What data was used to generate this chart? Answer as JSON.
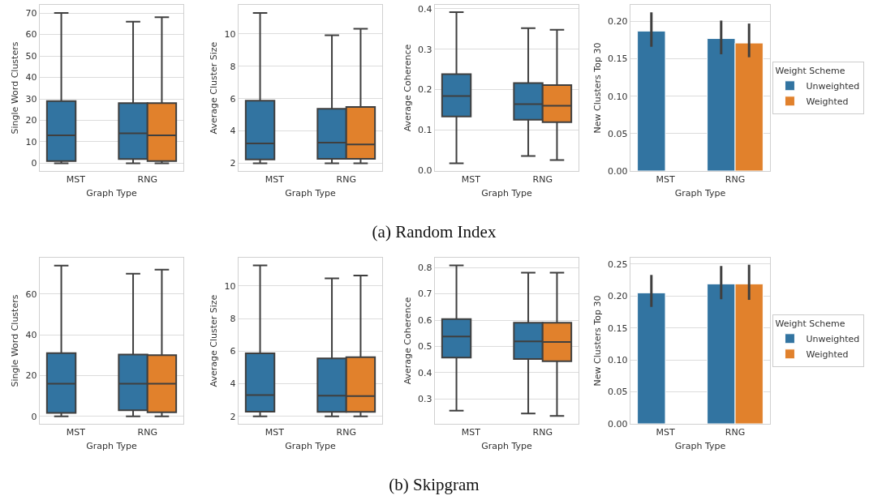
{
  "chart_data": [
    {
      "type": "box",
      "xlabel": "Graph Type",
      "ylabel": "Single Word Clusters",
      "categories": [
        "MST",
        "RNG"
      ],
      "ylim": [
        -3.6,
        73.8
      ],
      "yticks": [
        0,
        10,
        20,
        30,
        40,
        50,
        60,
        70
      ],
      "grid": "y",
      "annotations": [
        "(a) Random Index"
      ],
      "series": [
        {
          "color": "#3274a1",
          "boxes": [
            {
              "low": 0,
              "q1": 1,
              "median": 13,
              "q3": 29,
              "high": 70
            },
            {
              "low": 0,
              "q1": 2,
              "median": 14,
              "q3": 28,
              "high": 66
            }
          ]
        },
        {
          "color": "#e1812c",
          "boxes": [
            null,
            {
              "low": 0,
              "q1": 1,
              "median": 13,
              "q3": 28,
              "high": 68
            }
          ]
        }
      ]
    },
    {
      "type": "box",
      "xlabel": "Graph Type",
      "ylabel": "Average Cluster Size",
      "categories": [
        "MST",
        "RNG"
      ],
      "ylim": [
        1.52,
        11.8
      ],
      "yticks": [
        2,
        4,
        6,
        8,
        10
      ],
      "grid": "y",
      "series": [
        {
          "color": "#3274a1",
          "boxes": [
            {
              "low": 2,
              "q1": 2.23,
              "median": 3.22,
              "q3": 5.87,
              "high": 11.3
            },
            {
              "low": 2,
              "q1": 2.27,
              "median": 3.27,
              "q3": 5.37,
              "high": 9.92
            }
          ]
        },
        {
          "color": "#e1812c",
          "boxes": [
            null,
            {
              "low": 2,
              "q1": 2.27,
              "median": 3.16,
              "q3": 5.48,
              "high": 10.32
            }
          ]
        }
      ]
    },
    {
      "type": "box",
      "xlabel": "Graph Type",
      "ylabel": "Average Coherence",
      "categories": [
        "MST",
        "RNG"
      ],
      "ylim": [
        -0.002,
        0.41
      ],
      "yticks": [
        {
          "value": 0,
          "label": "0.0"
        },
        0.1,
        0.2,
        0.3,
        0.4
      ],
      "grid": "y",
      "series": [
        {
          "color": "#3274a1",
          "boxes": [
            {
              "low": 0.017,
              "q1": 0.133,
              "median": 0.184,
              "q3": 0.238,
              "high": 0.392
            },
            {
              "low": 0.035,
              "q1": 0.125,
              "median": 0.164,
              "q3": 0.216,
              "high": 0.352
            }
          ]
        },
        {
          "color": "#e1812c",
          "boxes": [
            null,
            {
              "low": 0.025,
              "q1": 0.119,
              "median": 0.16,
              "q3": 0.211,
              "high": 0.348
            }
          ]
        }
      ]
    },
    {
      "type": "bar",
      "xlabel": "Graph Type",
      "ylabel": "New Clusters Top 30",
      "categories": [
        "MST",
        "RNG"
      ],
      "ylim": [
        0,
        0.222
      ],
      "yticks": [
        {
          "value": 0,
          "label": "0.00"
        },
        0.05,
        {
          "value": 0.1,
          "label": "0.10"
        },
        0.15,
        {
          "value": 0.2,
          "label": "0.20"
        }
      ],
      "grid": "y",
      "legend": "right",
      "legend_title": "Weight Scheme",
      "series": [
        {
          "name": "Unweighted",
          "color": "#3274a1",
          "values": [
            0.187,
            0.177
          ],
          "errors": [
            [
              0.166,
              0.212
            ],
            [
              0.156,
              0.201
            ]
          ]
        },
        {
          "name": "Weighted",
          "color": "#e1812c",
          "values": [
            null,
            0.171
          ],
          "errors": [
            null,
            [
              0.152,
              0.197
            ]
          ]
        }
      ]
    },
    {
      "type": "box",
      "xlabel": "Graph Type",
      "ylabel": "Single Word Clusters",
      "categories": [
        "MST",
        "RNG"
      ],
      "ylim": [
        -3.7,
        77.9
      ],
      "yticks": [
        0,
        20,
        40,
        60
      ],
      "grid": "y",
      "annotations": [
        "(b) Skipgram"
      ],
      "series": [
        {
          "color": "#3274a1",
          "boxes": [
            {
              "low": 0,
              "q1": 1.7,
              "median": 16,
              "q3": 31,
              "high": 74
            },
            {
              "low": 0,
              "q1": 3,
              "median": 16,
              "q3": 30.3,
              "high": 70
            }
          ]
        },
        {
          "color": "#e1812c",
          "boxes": [
            null,
            {
              "low": 0,
              "q1": 2,
              "median": 16,
              "q3": 30,
              "high": 72
            }
          ]
        }
      ]
    },
    {
      "type": "box",
      "xlabel": "Graph Type",
      "ylabel": "Average Cluster Size",
      "categories": [
        "MST",
        "RNG"
      ],
      "ylim": [
        1.54,
        11.73
      ],
      "yticks": [
        2,
        4,
        6,
        8,
        10
      ],
      "grid": "y",
      "series": [
        {
          "color": "#3274a1",
          "boxes": [
            {
              "low": 2,
              "q1": 2.28,
              "median": 3.31,
              "q3": 5.87,
              "high": 11.26
            },
            {
              "low": 2,
              "q1": 2.27,
              "median": 3.27,
              "q3": 5.56,
              "high": 10.46
            }
          ]
        },
        {
          "color": "#e1812c",
          "boxes": [
            null,
            {
              "low": 2,
              "q1": 2.27,
              "median": 3.24,
              "q3": 5.63,
              "high": 10.64
            }
          ]
        }
      ]
    },
    {
      "type": "box",
      "xlabel": "Graph Type",
      "ylabel": "Average Coherence",
      "categories": [
        "MST",
        "RNG"
      ],
      "ylim": [
        0.206,
        0.837
      ],
      "yticks": [
        0.3,
        0.4,
        0.5,
        0.6,
        0.7,
        0.8
      ],
      "grid": "y",
      "series": [
        {
          "color": "#3274a1",
          "boxes": [
            {
              "low": 0.256,
              "q1": 0.458,
              "median": 0.538,
              "q3": 0.604,
              "high": 0.808
            },
            {
              "low": 0.245,
              "q1": 0.452,
              "median": 0.519,
              "q3": 0.59,
              "high": 0.78
            }
          ]
        },
        {
          "color": "#e1812c",
          "boxes": [
            null,
            {
              "low": 0.236,
              "q1": 0.444,
              "median": 0.517,
              "q3": 0.59,
              "high": 0.78
            }
          ]
        }
      ]
    },
    {
      "type": "bar",
      "xlabel": "Graph Type",
      "ylabel": "New Clusters Top 30",
      "categories": [
        "MST",
        "RNG"
      ],
      "ylim": [
        0,
        0.26
      ],
      "yticks": [
        {
          "value": 0,
          "label": "0.00"
        },
        0.05,
        {
          "value": 0.1,
          "label": "0.10"
        },
        0.15,
        {
          "value": 0.2,
          "label": "0.20"
        },
        0.25
      ],
      "grid": "y",
      "legend": "right",
      "legend_title": "Weight Scheme",
      "series": [
        {
          "name": "Unweighted",
          "color": "#3274a1",
          "values": [
            0.205,
            0.219
          ],
          "errors": [
            [
              0.183,
              0.233
            ],
            [
              0.195,
              0.247
            ]
          ]
        },
        {
          "name": "Weighted",
          "color": "#e1812c",
          "values": [
            null,
            0.219
          ],
          "errors": [
            null,
            [
              0.194,
              0.249
            ]
          ]
        }
      ]
    }
  ]
}
